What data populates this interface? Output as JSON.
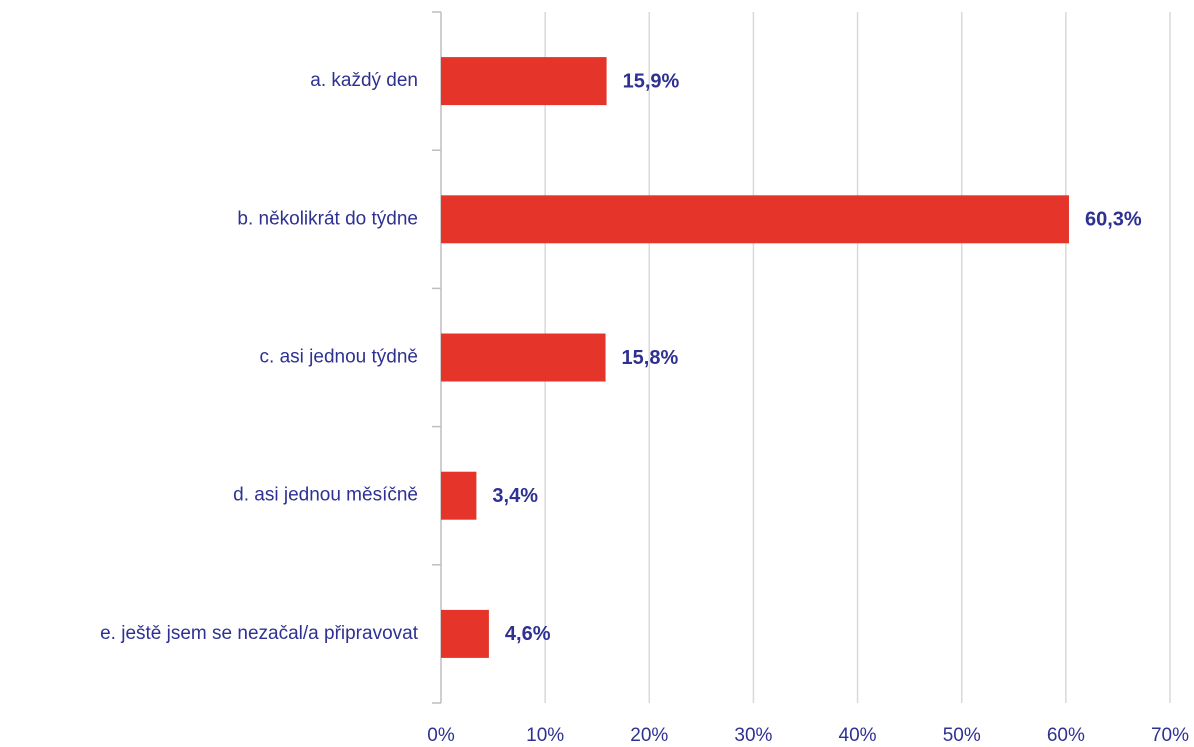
{
  "chart_data": {
    "type": "bar",
    "orientation": "horizontal",
    "categories": [
      "a. každý den",
      "b. několikrát do týdne",
      "c. asi jednou týdně",
      "d. asi jednou měsíčně",
      "e. ještě jsem se nezačal/a připravovat"
    ],
    "values": [
      15.9,
      60.3,
      15.8,
      3.4,
      4.6
    ],
    "value_labels": [
      "15,9%",
      "60,3%",
      "15,8%",
      "3,4%",
      "4,6%"
    ],
    "color": "#e5352b",
    "xlim": [
      0,
      70
    ],
    "xticks": [
      {
        "value": 0,
        "label": "0%"
      },
      {
        "value": 10,
        "label": "10%"
      },
      {
        "value": 20,
        "label": "20%"
      },
      {
        "value": 30,
        "label": "30%"
      },
      {
        "value": 40,
        "label": "40%"
      },
      {
        "value": 50,
        "label": "50%"
      },
      {
        "value": 60,
        "label": "60%"
      },
      {
        "value": 70,
        "label": "70%"
      }
    ],
    "grid": true
  }
}
